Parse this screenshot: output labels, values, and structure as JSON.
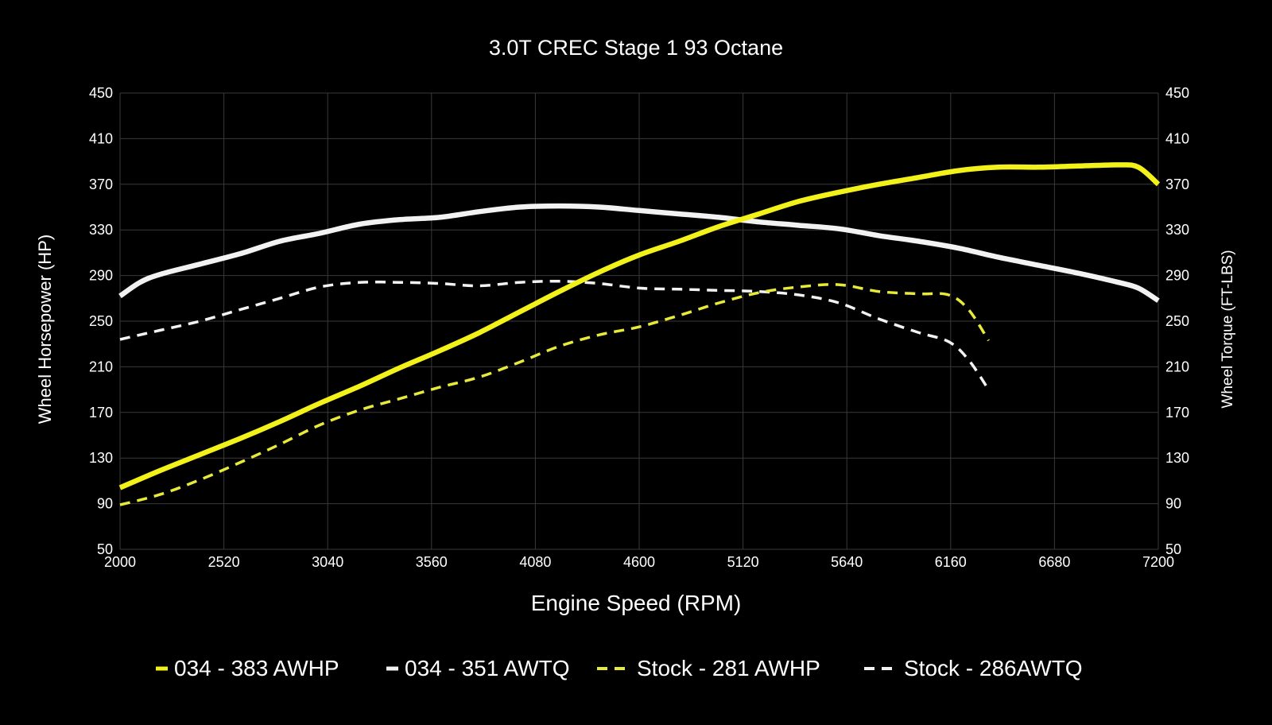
{
  "chart_data": {
    "type": "line",
    "title": "3.0T CREC Stage 1 93 Octane",
    "xlabel": "Engine Speed (RPM)",
    "ylabel_left": "Wheel Horsepower (HP)",
    "ylabel_right": "Wheel Torque (FT-LBS)",
    "xlim": [
      2000,
      7200
    ],
    "ylim": [
      50,
      450
    ],
    "x_ticks": [
      2000,
      2520,
      3040,
      3560,
      4080,
      4600,
      5120,
      5640,
      6160,
      6680,
      7200
    ],
    "y_ticks": [
      50,
      90,
      130,
      170,
      210,
      250,
      290,
      330,
      370,
      410,
      450
    ],
    "grid": true,
    "legend_position": "bottom",
    "background_color": "#000000",
    "grid_color": "#3a3a3a",
    "series": [
      {
        "name": "034 - 383 AWHP",
        "color": "#f2f21a",
        "style": "solid",
        "axis": "left",
        "points": [
          [
            2000,
            104
          ],
          [
            2200,
            119
          ],
          [
            2400,
            133
          ],
          [
            2600,
            147
          ],
          [
            2800,
            162
          ],
          [
            3000,
            178
          ],
          [
            3200,
            193
          ],
          [
            3400,
            209
          ],
          [
            3600,
            224
          ],
          [
            3800,
            240
          ],
          [
            4000,
            258
          ],
          [
            4200,
            276
          ],
          [
            4400,
            293
          ],
          [
            4600,
            308
          ],
          [
            4800,
            320
          ],
          [
            5000,
            333
          ],
          [
            5200,
            344
          ],
          [
            5400,
            355
          ],
          [
            5600,
            363
          ],
          [
            5800,
            370
          ],
          [
            6000,
            376
          ],
          [
            6200,
            382
          ],
          [
            6400,
            385
          ],
          [
            6600,
            385
          ],
          [
            6800,
            386
          ],
          [
            7000,
            387
          ],
          [
            7100,
            385
          ],
          [
            7200,
            370
          ]
        ]
      },
      {
        "name": "034 - 351 AWTQ",
        "color": "#f2f2f2",
        "style": "solid",
        "axis": "right",
        "points": [
          [
            2000,
            272
          ],
          [
            2100,
            284
          ],
          [
            2200,
            291
          ],
          [
            2400,
            300
          ],
          [
            2600,
            309
          ],
          [
            2800,
            320
          ],
          [
            3000,
            327
          ],
          [
            3200,
            335
          ],
          [
            3400,
            339
          ],
          [
            3600,
            341
          ],
          [
            3800,
            346
          ],
          [
            4000,
            350
          ],
          [
            4200,
            351
          ],
          [
            4400,
            350
          ],
          [
            4600,
            347
          ],
          [
            4800,
            344
          ],
          [
            5000,
            341
          ],
          [
            5200,
            337
          ],
          [
            5400,
            334
          ],
          [
            5600,
            331
          ],
          [
            5800,
            325
          ],
          [
            6000,
            320
          ],
          [
            6200,
            314
          ],
          [
            6400,
            306
          ],
          [
            6600,
            299
          ],
          [
            6800,
            292
          ],
          [
            7000,
            284
          ],
          [
            7100,
            279
          ],
          [
            7200,
            268
          ]
        ]
      },
      {
        "name": "Stock - 281 AWHP",
        "color": "#e8ea3a",
        "style": "dashed",
        "axis": "left",
        "points": [
          [
            2000,
            89
          ],
          [
            2200,
            98
          ],
          [
            2400,
            111
          ],
          [
            2600,
            126
          ],
          [
            2800,
            142
          ],
          [
            3000,
            159
          ],
          [
            3200,
            172
          ],
          [
            3400,
            182
          ],
          [
            3600,
            192
          ],
          [
            3800,
            201
          ],
          [
            4000,
            214
          ],
          [
            4200,
            228
          ],
          [
            4400,
            238
          ],
          [
            4600,
            245
          ],
          [
            4800,
            255
          ],
          [
            5000,
            266
          ],
          [
            5200,
            275
          ],
          [
            5400,
            280
          ],
          [
            5600,
            282
          ],
          [
            5800,
            276
          ],
          [
            6000,
            274
          ],
          [
            6150,
            273
          ],
          [
            6250,
            260
          ],
          [
            6350,
            233
          ]
        ]
      },
      {
        "name": "Stock - 286AWTQ",
        "color": "#f2f2f2",
        "style": "dashed",
        "axis": "right",
        "points": [
          [
            2000,
            234
          ],
          [
            2200,
            242
          ],
          [
            2400,
            250
          ],
          [
            2600,
            260
          ],
          [
            2800,
            270
          ],
          [
            3000,
            280
          ],
          [
            3200,
            284
          ],
          [
            3400,
            284
          ],
          [
            3600,
            283
          ],
          [
            3800,
            281
          ],
          [
            4000,
            284
          ],
          [
            4200,
            285
          ],
          [
            4400,
            283
          ],
          [
            4600,
            279
          ],
          [
            4800,
            278
          ],
          [
            5000,
            277
          ],
          [
            5200,
            276
          ],
          [
            5400,
            273
          ],
          [
            5600,
            266
          ],
          [
            5800,
            252
          ],
          [
            6000,
            240
          ],
          [
            6150,
            232
          ],
          [
            6250,
            216
          ],
          [
            6350,
            190
          ]
        ]
      }
    ]
  }
}
